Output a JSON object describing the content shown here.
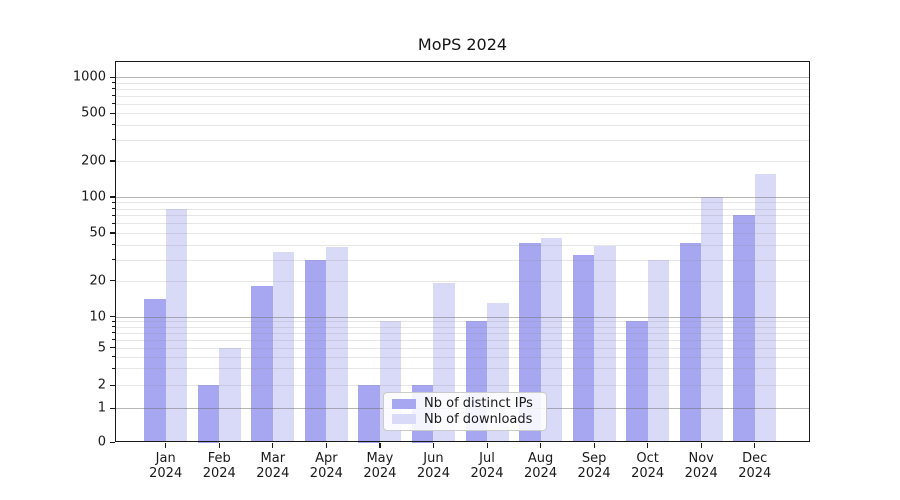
{
  "chart_data": {
    "type": "bar",
    "title": "MoPS 2024",
    "categories": [
      "Jan",
      "Feb",
      "Mar",
      "Apr",
      "May",
      "Jun",
      "Jul",
      "Aug",
      "Sep",
      "Oct",
      "Nov",
      "Dec"
    ],
    "year_label": "2024",
    "series": [
      {
        "name": "Nb of distinct IPs",
        "color": "#a6a6f1",
        "values": [
          14,
          2,
          18,
          30,
          2,
          2,
          9,
          41,
          33,
          9,
          41,
          70
        ]
      },
      {
        "name": "Nb of downloads",
        "color": "#d9d9f8",
        "values": [
          80,
          5,
          35,
          38,
          9,
          19,
          13,
          45,
          39,
          30,
          100,
          155
        ]
      }
    ],
    "yscale": "symlog",
    "ylim": [
      0,
      1360
    ],
    "yticks": [
      1000,
      500,
      200,
      100,
      50,
      20,
      10,
      5,
      2,
      1,
      0
    ],
    "grid": {
      "major": [
        1,
        10,
        100,
        1000
      ],
      "minor": [
        2,
        3,
        4,
        5,
        6,
        7,
        8,
        9,
        20,
        30,
        40,
        50,
        60,
        70,
        80,
        90,
        200,
        300,
        400,
        500,
        600,
        700,
        800,
        900
      ]
    },
    "legend_position": "lower center",
    "background": "#ffffff"
  }
}
